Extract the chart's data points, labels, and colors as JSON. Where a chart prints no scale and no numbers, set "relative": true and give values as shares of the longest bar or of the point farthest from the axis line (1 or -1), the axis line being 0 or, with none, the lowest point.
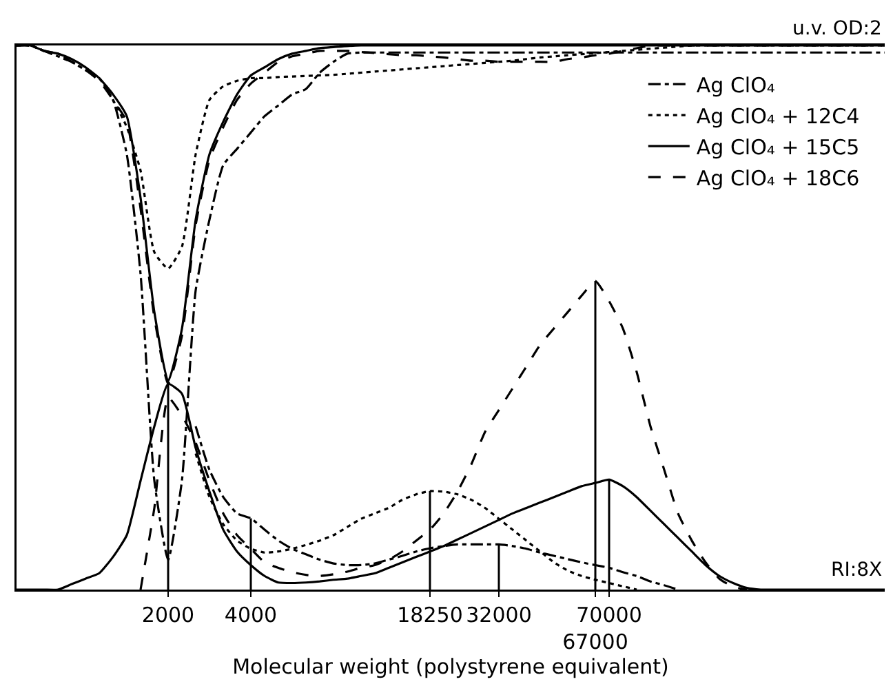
{
  "chart_data": {
    "type": "line",
    "relative": true,
    "xlabel": "Molecular weight (polystyrene equivalent)",
    "categories": [
      null,
      null,
      null,
      null,
      null,
      null,
      null,
      null,
      null,
      null,
      null,
      "2000",
      null,
      null,
      null,
      null,
      null,
      "4000",
      null,
      null,
      null,
      null,
      null,
      null,
      null,
      null,
      null,
      null,
      null,
      null,
      "18250",
      null,
      null,
      null,
      null,
      "32000",
      null,
      null,
      null,
      null,
      null,
      null,
      "67000",
      "70000",
      null,
      null,
      null,
      null,
      null,
      null,
      null,
      null,
      null,
      null,
      null,
      null,
      null,
      null,
      null,
      null,
      null,
      null,
      null,
      null
    ],
    "annotations": [
      "u.v. OD:2",
      "RI:8X"
    ],
    "legend": "top right",
    "marker": "none",
    "series": [
      {
        "name": "Ag ClO₄",
        "color": "#000000",
        "line_style": "dashdot",
        "values": [
          1,
          1,
          0.99,
          0.985,
          0.97,
          0.955,
          0.94,
          0.9,
          0.8,
          0.58,
          0.2,
          0.055,
          0.2,
          0.55,
          0.68,
          0.78,
          0.81,
          0.84,
          0.87,
          0.89,
          0.91,
          0.92,
          0.95,
          0.97,
          0.985,
          0.987,
          0.987,
          0.987,
          0.987,
          0.987,
          0.987,
          0.987,
          0.987,
          0.987,
          0.987,
          0.987,
          0.987,
          0.987,
          0.987,
          0.987,
          0.987,
          0.987,
          0.987,
          0.987,
          0.987,
          0.987,
          0.987,
          0.987,
          0.987,
          0.987,
          0.987,
          0.987,
          0.987,
          0.987,
          0.987,
          0.987,
          0.987,
          0.987,
          0.987,
          0.987,
          0.987,
          0.987,
          0.987,
          0.987
        ]
      },
      {
        "name": "Ag ClO₄ + 12C4",
        "color": "#000000",
        "line_style": "dotted",
        "values": [
          1,
          1,
          0.99,
          0.98,
          0.97,
          0.955,
          0.94,
          0.9,
          0.85,
          0.77,
          0.62,
          0.59,
          0.63,
          0.8,
          0.9,
          0.925,
          0.935,
          0.94,
          0.94,
          0.942,
          0.943,
          0.944,
          0.945,
          0.946,
          0.948,
          0.95,
          0.952,
          0.954,
          0.956,
          0.958,
          0.96,
          0.962,
          0.964,
          0.966,
          0.968,
          0.97,
          0.972,
          0.975,
          0.978,
          0.98,
          0.982,
          0.984,
          0.986,
          0.988,
          0.99,
          0.992,
          0.994,
          0.996,
          0.998,
          1,
          1,
          1,
          1,
          1,
          1,
          1,
          1,
          1,
          1,
          1,
          1,
          1,
          1,
          1
        ]
      },
      {
        "name": "Ag ClO₄ + 15C5",
        "color": "#000000",
        "line_style": "solid",
        "values": [
          1,
          1,
          0.99,
          0.985,
          0.975,
          0.96,
          0.94,
          0.91,
          0.87,
          0.72,
          0.51,
          0.383,
          0.479,
          0.68,
          0.8,
          0.86,
          0.91,
          0.945,
          0.96,
          0.975,
          0.985,
          0.99,
          0.995,
          0.997,
          0.999,
          1,
          1,
          1,
          1,
          1,
          1,
          1,
          1,
          1,
          1,
          1,
          1,
          1,
          1,
          1,
          1,
          1,
          1,
          1,
          1,
          1,
          1,
          1,
          1,
          1,
          1,
          1,
          1,
          1,
          1,
          1,
          1,
          1,
          1,
          1,
          1,
          1,
          1,
          1
        ]
      },
      {
        "name": "Ag ClO₄ + 18C6",
        "color": "#000000",
        "line_style": "dashed",
        "values": [
          1,
          1,
          0.99,
          0.98,
          0.97,
          0.955,
          0.935,
          0.9,
          0.86,
          0.7,
          0.5,
          0.378,
          0.466,
          0.67,
          0.79,
          0.85,
          0.9,
          0.93,
          0.95,
          0.97,
          0.98,
          0.985,
          0.99,
          0.99,
          0.99,
          0.988,
          0.986,
          0.984,
          0.982,
          0.982,
          0.98,
          0.978,
          0.975,
          0.972,
          0.972,
          0.97,
          0.97,
          0.97,
          0.97,
          0.97,
          0.975,
          0.978,
          0.982,
          0.985,
          0.99,
          0.995,
          1,
          1,
          1,
          1,
          1,
          1,
          1,
          1,
          1,
          1,
          1,
          1,
          1,
          1,
          1,
          1,
          1,
          1
        ]
      },
      {
        "color": "#000000",
        "line_style": "dashdot",
        "values": [
          null,
          null,
          null,
          null,
          null,
          null,
          null,
          null,
          null,
          null,
          null,
          null,
          null,
          0.3,
          0.22,
          0.17,
          0.14,
          0.131,
          0.11,
          0.09,
          0.075,
          0.065,
          0.055,
          0.048,
          0.045,
          0.045,
          0.048,
          0.055,
          0.062,
          0.07,
          0.076,
          0.08,
          0.083,
          0.083,
          0.083,
          0.083,
          0.08,
          0.075,
          0.068,
          0.062,
          0.056,
          0.05,
          0.045,
          0.04,
          0.032,
          0.025,
          0.015,
          0.008,
          0,
          null,
          null,
          null,
          null,
          null,
          null,
          null,
          null,
          null,
          null,
          null,
          null,
          null,
          null,
          null
        ]
      },
      {
        "color": "#000000",
        "line_style": "dotted",
        "values": [
          null,
          null,
          null,
          null,
          null,
          null,
          null,
          null,
          null,
          null,
          null,
          null,
          null,
          0.25,
          0.17,
          0.12,
          0.09,
          0.075,
          0.068,
          0.07,
          0.075,
          0.082,
          0.09,
          0.1,
          0.115,
          0.13,
          0.14,
          0.15,
          0.165,
          0.175,
          0.181,
          0.18,
          0.175,
          0.165,
          0.15,
          0.13,
          0.11,
          0.09,
          0.07,
          0.05,
          0.035,
          0.025,
          0.018,
          0.012,
          0.006,
          0,
          null,
          null,
          null,
          null,
          null,
          null,
          null,
          null,
          null,
          null,
          null,
          null,
          null,
          null,
          null,
          null,
          null,
          null
        ]
      },
      {
        "color": "#000000",
        "line_style": "solid",
        "values": [
          0,
          0,
          0,
          0,
          0.01,
          0.02,
          0.03,
          0.06,
          0.1,
          0.2,
          0.3,
          0.378,
          0.36,
          0.26,
          0.18,
          0.11,
          0.07,
          0.045,
          0.025,
          0.013,
          0.012,
          0.013,
          0.015,
          0.018,
          0.02,
          0.025,
          0.03,
          0.04,
          0.05,
          0.06,
          0.07,
          0.08,
          0.092,
          0.104,
          0.116,
          0.128,
          0.14,
          0.15,
          0.16,
          0.17,
          0.18,
          0.19,
          0.196,
          0.202,
          0.19,
          0.17,
          0.145,
          0.12,
          0.095,
          0.07,
          0.045,
          0.025,
          0.012,
          0.003,
          0,
          0,
          0,
          0,
          0,
          0,
          0,
          0,
          0,
          0
        ]
      },
      {
        "color": "#000000",
        "line_style": "dashed",
        "values": [
          null,
          null,
          null,
          null,
          null,
          null,
          null,
          null,
          null,
          0,
          0.15,
          0.353,
          0.32,
          0.27,
          0.2,
          0.14,
          0.1,
          0.075,
          0.05,
          0.04,
          0.032,
          0.027,
          0.025,
          0.028,
          0.033,
          0.04,
          0.045,
          0.055,
          0.07,
          0.09,
          0.11,
          0.14,
          0.18,
          0.23,
          0.29,
          0.33,
          0.37,
          0.41,
          0.45,
          0.48,
          0.51,
          0.54,
          0.567,
          0.53,
          0.48,
          0.4,
          0.3,
          0.22,
          0.14,
          0.09,
          0.05,
          0.02,
          0.005,
          0,
          null,
          null,
          null,
          null,
          null,
          null,
          null,
          null,
          null,
          null
        ]
      },
      {
        "type": "bar",
        "color": "#000000",
        "values": [
          null,
          null,
          null,
          null,
          null,
          null,
          null,
          null,
          null,
          null,
          null,
          0.383,
          null,
          null,
          null,
          null,
          null,
          0.131,
          null,
          null,
          null,
          null,
          null,
          null,
          null,
          null,
          null,
          null,
          null,
          null,
          0.181,
          null,
          null,
          null,
          null,
          0.083,
          null,
          null,
          null,
          null,
          null,
          null,
          0.567,
          0.202,
          null,
          null,
          null,
          null,
          null,
          null,
          null,
          null,
          null,
          null,
          null,
          null,
          null,
          null,
          null,
          null,
          null,
          null,
          null,
          null
        ]
      }
    ]
  }
}
